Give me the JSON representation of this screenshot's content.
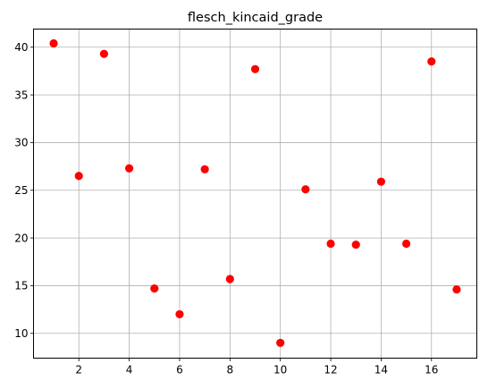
{
  "chart_data": {
    "type": "scatter",
    "title": "flesch_kincaid_grade",
    "xlabel": "",
    "ylabel": "",
    "x": [
      1,
      2,
      3,
      4,
      5,
      6,
      7,
      8,
      9,
      10,
      11,
      12,
      13,
      14,
      15,
      16,
      17
    ],
    "y": [
      40.4,
      26.5,
      39.3,
      27.3,
      14.7,
      12.0,
      27.2,
      15.7,
      37.7,
      9.0,
      25.1,
      19.4,
      19.3,
      25.9,
      19.4,
      38.5,
      14.6
    ],
    "xlim": [
      0.2,
      17.8
    ],
    "ylim": [
      7.4,
      41.9
    ],
    "xticks": [
      2,
      4,
      6,
      8,
      10,
      12,
      14,
      16
    ],
    "yticks": [
      10,
      15,
      20,
      25,
      30,
      35,
      40
    ],
    "grid": true,
    "marker_color": "#ff0000"
  }
}
